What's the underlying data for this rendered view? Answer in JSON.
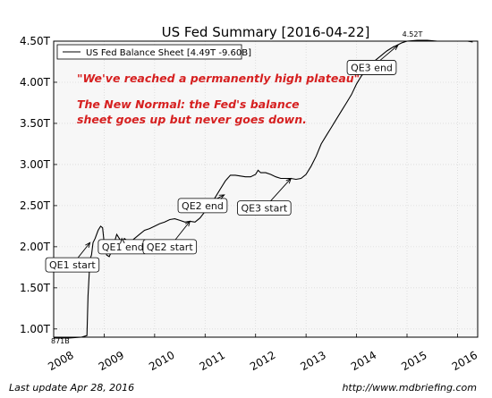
{
  "chart_data": {
    "type": "line",
    "title": "US Fed Summary  [2016-04-22]",
    "ylim": [
      0.9,
      4.5
    ],
    "xlim": [
      2008.0,
      2016.4
    ],
    "y_ticks": [
      {
        "value": 4.5,
        "label": "4.50T"
      },
      {
        "value": 4.0,
        "label": "4.00T"
      },
      {
        "value": 3.5,
        "label": "3.50T"
      },
      {
        "value": 3.0,
        "label": "3.00T"
      },
      {
        "value": 2.5,
        "label": "2.50T"
      },
      {
        "value": 2.0,
        "label": "2.00T"
      },
      {
        "value": 1.5,
        "label": "1.50T"
      },
      {
        "value": 1.0,
        "label": "1.00T"
      }
    ],
    "x_ticks": [
      {
        "value": 2008,
        "label": "2008"
      },
      {
        "value": 2009,
        "label": "2009"
      },
      {
        "value": 2010,
        "label": "2010"
      },
      {
        "value": 2011,
        "label": "2011"
      },
      {
        "value": 2012,
        "label": "2012"
      },
      {
        "value": 2013,
        "label": "2013"
      },
      {
        "value": 2014,
        "label": "2014"
      },
      {
        "value": 2015,
        "label": "2015"
      },
      {
        "value": 2016,
        "label": "2016"
      }
    ],
    "grid": true,
    "legend": {
      "placement": "top-left",
      "entries": [
        "US Fed Balance Sheet [4.49T -9.60B]"
      ]
    },
    "series": [
      {
        "name": "US Fed Balance Sheet [4.49T -9.60B]",
        "color": "#000000",
        "points": [
          [
            2008.0,
            0.89
          ],
          [
            2008.3,
            0.89
          ],
          [
            2008.55,
            0.9
          ],
          [
            2008.66,
            0.92
          ],
          [
            2008.68,
            1.4
          ],
          [
            2008.72,
            1.85
          ],
          [
            2008.75,
            1.9
          ],
          [
            2008.78,
            2.05
          ],
          [
            2008.82,
            2.1
          ],
          [
            2008.88,
            2.2
          ],
          [
            2008.93,
            2.25
          ],
          [
            2008.97,
            2.23
          ],
          [
            2009.0,
            2.05
          ],
          [
            2009.05,
            1.9
          ],
          [
            2009.1,
            1.88
          ],
          [
            2009.15,
            1.95
          ],
          [
            2009.2,
            2.05
          ],
          [
            2009.25,
            2.15
          ],
          [
            2009.3,
            2.1
          ],
          [
            2009.35,
            2.05
          ],
          [
            2009.4,
            2.1
          ],
          [
            2009.45,
            2.08
          ],
          [
            2009.5,
            2.05
          ],
          [
            2009.6,
            2.1
          ],
          [
            2009.7,
            2.15
          ],
          [
            2009.8,
            2.2
          ],
          [
            2009.9,
            2.22
          ],
          [
            2010.0,
            2.25
          ],
          [
            2010.1,
            2.28
          ],
          [
            2010.2,
            2.3
          ],
          [
            2010.3,
            2.33
          ],
          [
            2010.4,
            2.34
          ],
          [
            2010.5,
            2.32
          ],
          [
            2010.6,
            2.3
          ],
          [
            2010.7,
            2.31
          ],
          [
            2010.8,
            2.3
          ],
          [
            2010.9,
            2.35
          ],
          [
            2011.0,
            2.43
          ],
          [
            2011.1,
            2.5
          ],
          [
            2011.2,
            2.6
          ],
          [
            2011.3,
            2.7
          ],
          [
            2011.4,
            2.8
          ],
          [
            2011.5,
            2.87
          ],
          [
            2011.6,
            2.87
          ],
          [
            2011.7,
            2.86
          ],
          [
            2011.8,
            2.85
          ],
          [
            2011.9,
            2.85
          ],
          [
            2012.0,
            2.88
          ],
          [
            2012.05,
            2.93
          ],
          [
            2012.1,
            2.9
          ],
          [
            2012.2,
            2.9
          ],
          [
            2012.3,
            2.88
          ],
          [
            2012.4,
            2.85
          ],
          [
            2012.5,
            2.83
          ],
          [
            2012.6,
            2.83
          ],
          [
            2012.7,
            2.83
          ],
          [
            2012.8,
            2.82
          ],
          [
            2012.9,
            2.83
          ],
          [
            2013.0,
            2.88
          ],
          [
            2013.1,
            2.98
          ],
          [
            2013.2,
            3.1
          ],
          [
            2013.3,
            3.25
          ],
          [
            2013.4,
            3.35
          ],
          [
            2013.5,
            3.45
          ],
          [
            2013.6,
            3.55
          ],
          [
            2013.7,
            3.65
          ],
          [
            2013.8,
            3.75
          ],
          [
            2013.9,
            3.85
          ],
          [
            2014.0,
            3.98
          ],
          [
            2014.1,
            4.08
          ],
          [
            2014.2,
            4.15
          ],
          [
            2014.3,
            4.23
          ],
          [
            2014.4,
            4.28
          ],
          [
            2014.5,
            4.33
          ],
          [
            2014.6,
            4.38
          ],
          [
            2014.7,
            4.42
          ],
          [
            2014.8,
            4.45
          ],
          [
            2014.9,
            4.48
          ],
          [
            2015.0,
            4.5
          ],
          [
            2015.2,
            4.51
          ],
          [
            2015.4,
            4.51
          ],
          [
            2015.6,
            4.5
          ],
          [
            2015.8,
            4.5
          ],
          [
            2016.0,
            4.5
          ],
          [
            2016.2,
            4.5
          ],
          [
            2016.3,
            4.49
          ]
        ]
      }
    ],
    "peak_label": {
      "x": 2015.0,
      "y": 4.52,
      "text": "4.52T"
    },
    "start_label": {
      "x": 2008.0,
      "y": 0.87,
      "text": "871B"
    },
    "quotes": [
      "\"We've reached a permanently high plateau\"",
      "The New Normal: the Fed's balance",
      "sheet goes up but never goes down."
    ],
    "annotations": [
      {
        "text": "QE1 start",
        "x": 2008.72,
        "y": 2.05,
        "tx": 2008.37,
        "ty": 1.78
      },
      {
        "text": "QE1 end",
        "x": 2009.35,
        "y": 2.1,
        "tx": 2009.37,
        "ty": 2.0
      },
      {
        "text": "QE2 start",
        "x": 2010.7,
        "y": 2.31,
        "tx": 2010.3,
        "ty": 2.0
      },
      {
        "text": "QE2 end",
        "x": 2011.38,
        "y": 2.63,
        "tx": 2010.95,
        "ty": 2.5
      },
      {
        "text": "QE3 start",
        "x": 2012.7,
        "y": 2.83,
        "tx": 2012.17,
        "ty": 2.47
      },
      {
        "text": "QE3 end",
        "x": 2014.82,
        "y": 4.45,
        "tx": 2014.3,
        "ty": 4.18
      }
    ]
  },
  "footer": {
    "left": "Last update Apr 28, 2016",
    "right": "http://www.mdbriefing.com"
  },
  "colors": {
    "quote": "#d62020",
    "plot_bg": "#f7f7f7",
    "grid": "#d9d9d9"
  }
}
